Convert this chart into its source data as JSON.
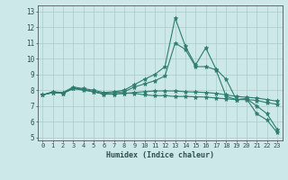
{
  "xlabel": "Humidex (Indice chaleur)",
  "ylabel": "",
  "xlim": [
    -0.5,
    23.5
  ],
  "ylim": [
    4.8,
    13.4
  ],
  "yticks": [
    5,
    6,
    7,
    8,
    9,
    10,
    11,
    12,
    13
  ],
  "xticks": [
    0,
    1,
    2,
    3,
    4,
    5,
    6,
    7,
    8,
    9,
    10,
    11,
    12,
    13,
    14,
    15,
    16,
    17,
    18,
    19,
    20,
    21,
    22,
    23
  ],
  "bg_color": "#cce8e8",
  "grid_color": "#aacccc",
  "line_color": "#2e7d6e",
  "lines": [
    [
      7.7,
      7.9,
      7.85,
      8.2,
      8.1,
      8.0,
      7.85,
      7.9,
      8.0,
      8.35,
      8.7,
      9.0,
      9.5,
      12.6,
      10.8,
      9.6,
      10.7,
      9.35,
      8.7,
      7.4,
      7.45,
      6.5,
      6.1,
      5.3
    ],
    [
      7.7,
      7.85,
      7.8,
      8.15,
      8.05,
      7.9,
      7.8,
      7.85,
      7.9,
      8.2,
      8.4,
      8.6,
      8.9,
      11.0,
      10.6,
      9.5,
      9.5,
      9.3,
      7.6,
      7.4,
      7.45,
      7.0,
      6.5,
      5.5
    ],
    [
      7.7,
      7.85,
      7.8,
      8.1,
      8.0,
      7.9,
      7.75,
      7.75,
      7.8,
      7.8,
      7.7,
      7.65,
      7.65,
      7.6,
      7.6,
      7.58,
      7.56,
      7.5,
      7.45,
      7.4,
      7.4,
      7.35,
      7.2,
      7.1
    ],
    [
      7.7,
      7.85,
      7.8,
      8.1,
      8.05,
      7.9,
      7.75,
      7.75,
      7.8,
      7.85,
      7.9,
      7.95,
      7.95,
      7.95,
      7.9,
      7.88,
      7.85,
      7.8,
      7.7,
      7.6,
      7.55,
      7.5,
      7.4,
      7.3
    ]
  ]
}
